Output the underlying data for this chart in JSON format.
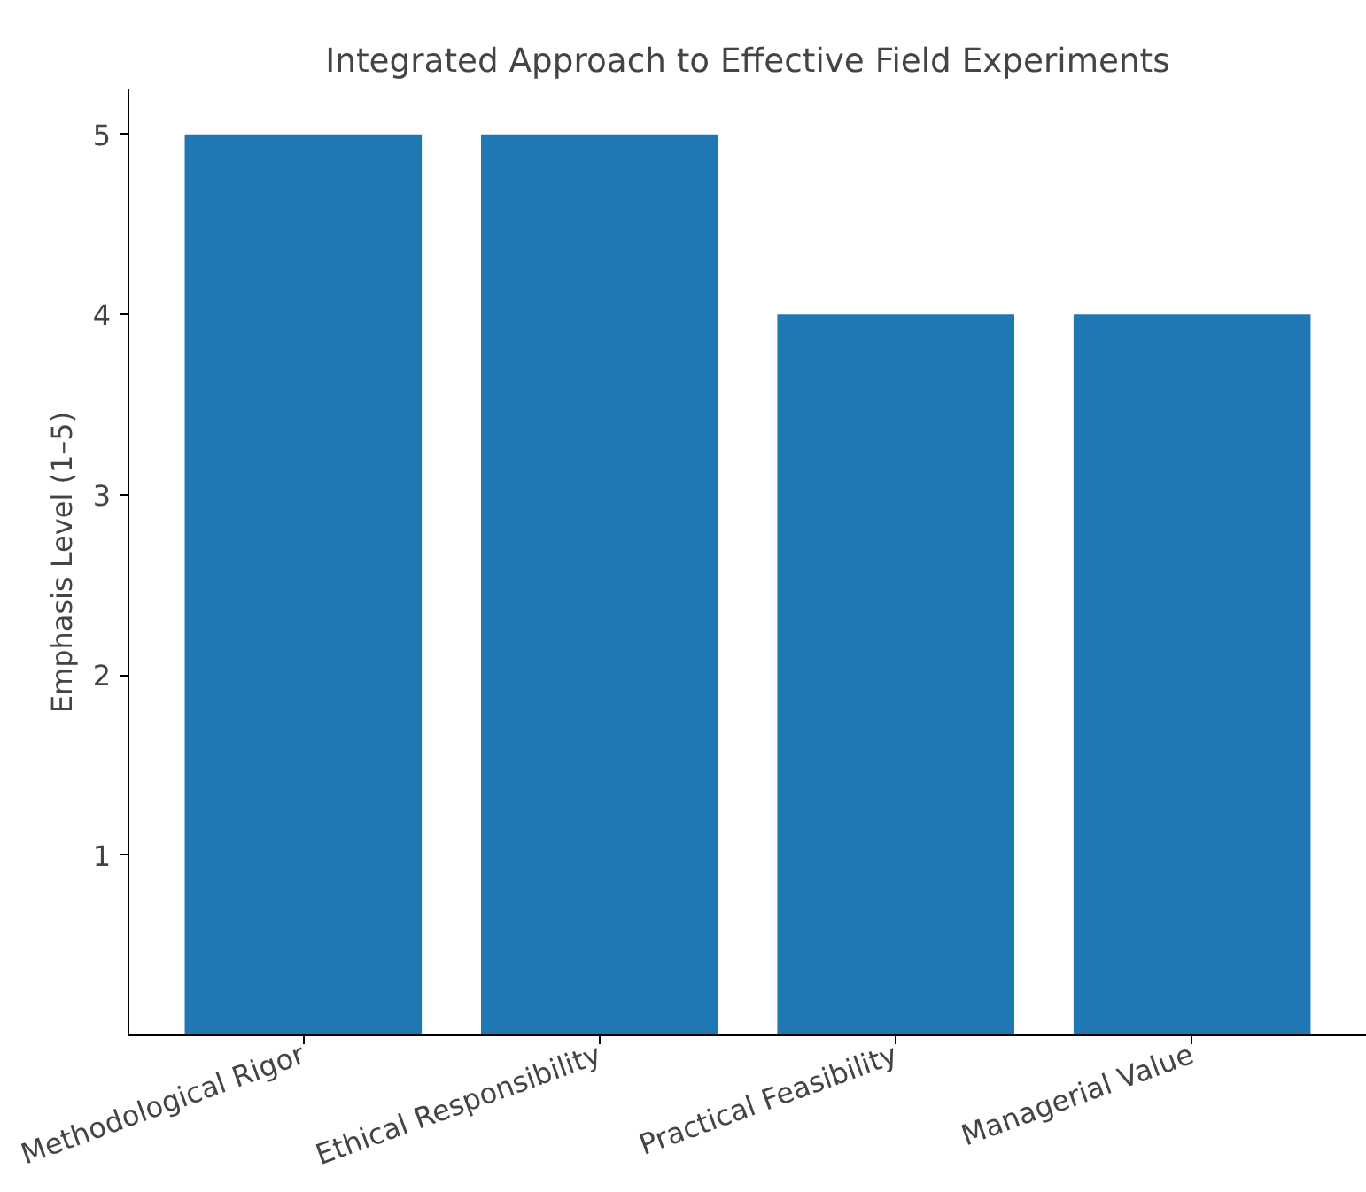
{
  "chart_data": {
    "type": "bar",
    "title": "Integrated Approach to Effective Field Experiments",
    "ylabel": "Emphasis Level (1–5)",
    "categories": [
      "Methodological Rigor",
      "Ethical Responsibility",
      "Practical Feasibility",
      "Managerial Value"
    ],
    "values": [
      5,
      5,
      4,
      4
    ],
    "color": "#1f77b4",
    "ylim": [
      0,
      5.25
    ],
    "yticks": [
      1,
      2,
      3,
      4,
      5
    ],
    "grid": false
  }
}
